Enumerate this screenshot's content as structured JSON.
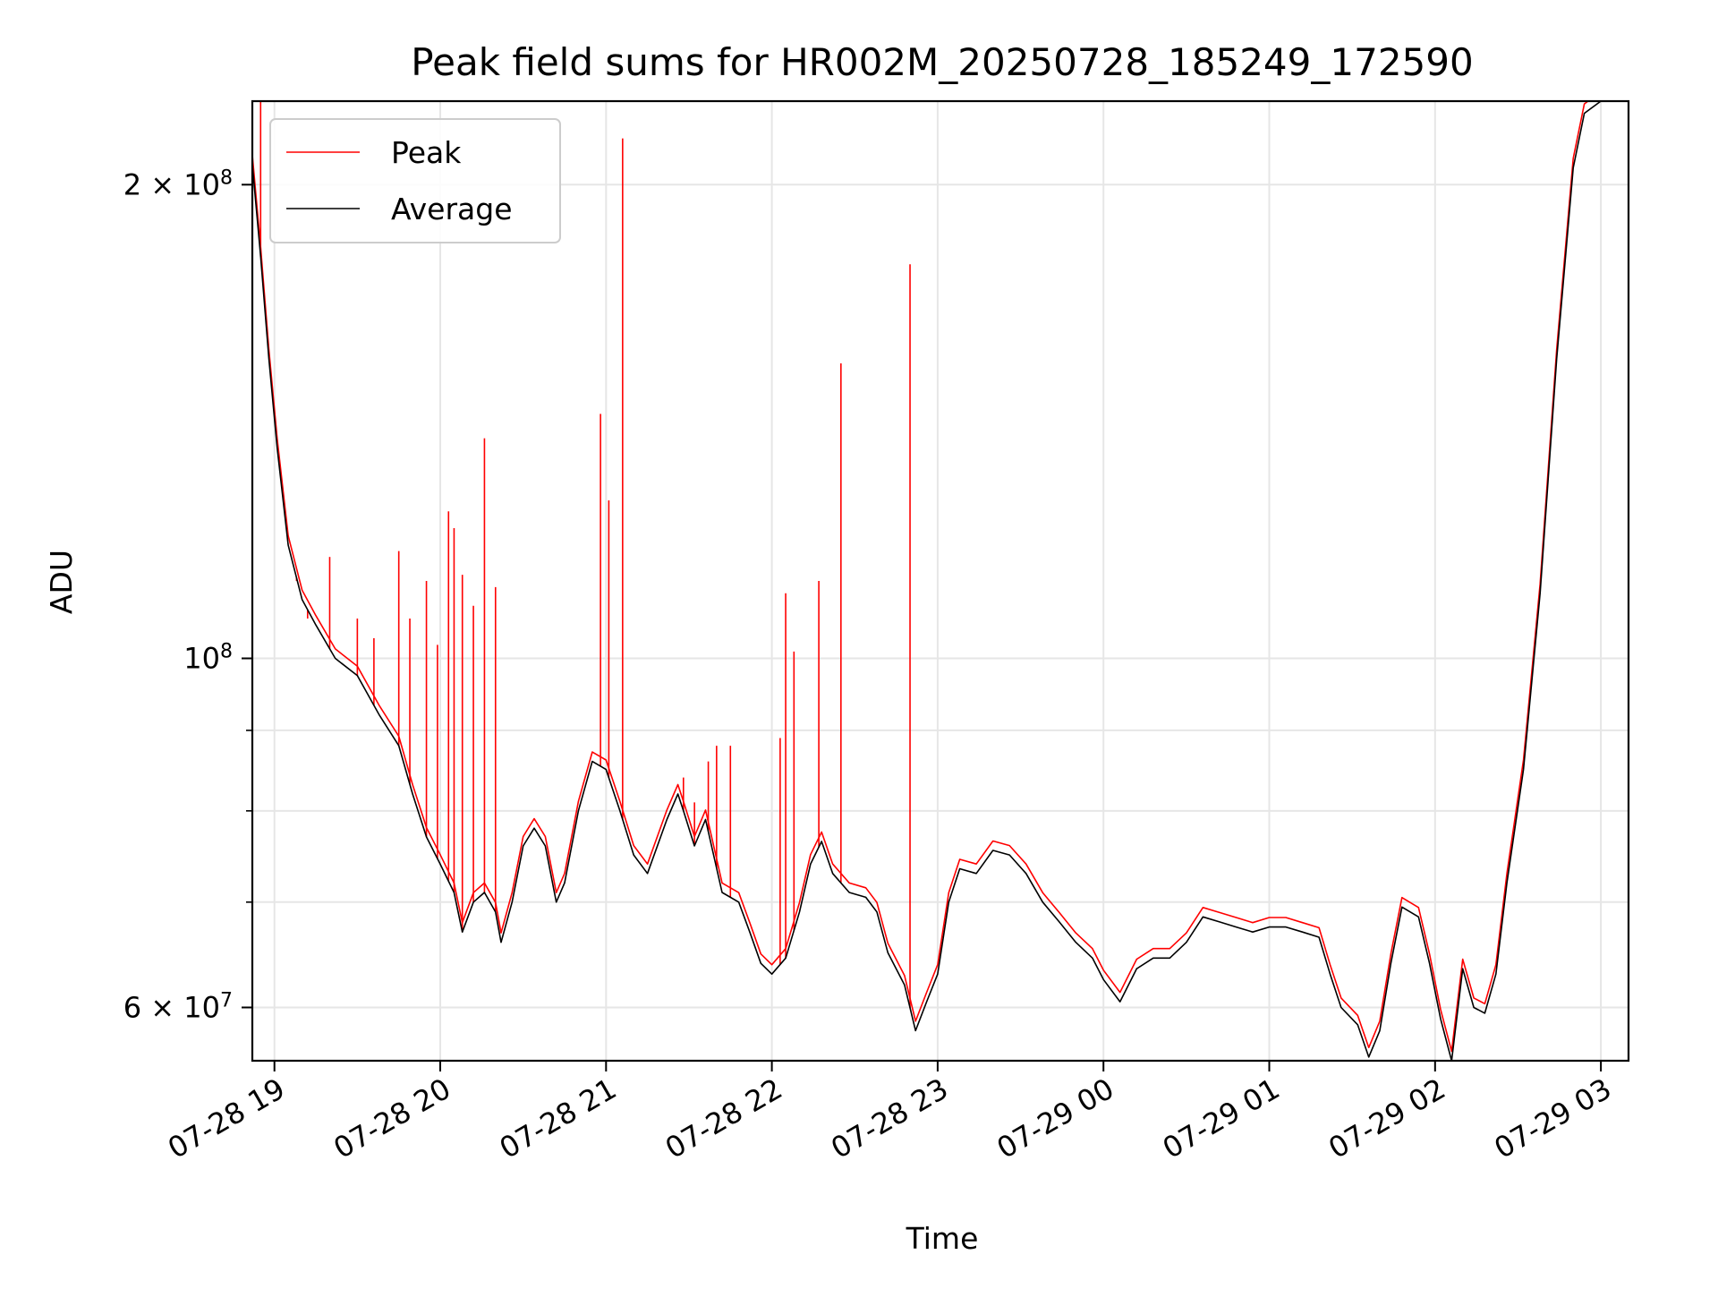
{
  "chart_data": {
    "type": "line",
    "title": "Peak field sums for HR002M_20250728_185249_172590",
    "xlabel": "Time",
    "ylabel": "ADU",
    "yscale": "log",
    "xlim": [
      "2025-07-28 18:52",
      "2025-07-29 03:10"
    ],
    "ylim": [
      55500000,
      226000000
    ],
    "grid": true,
    "legend_position": "top-left",
    "x_ticks": [
      "07-28 19",
      "07-28 20",
      "07-28 21",
      "07-28 22",
      "07-28 23",
      "07-29 00",
      "07-29 01",
      "07-29 02",
      "07-29 03"
    ],
    "y_tick_labels": [
      "2 × 10^8",
      "10^8",
      "6 × 10^7"
    ],
    "y_major_ticks": [
      200000000,
      100000000,
      60000000
    ],
    "y_minor_ticks": [
      90000000,
      80000000,
      70000000
    ],
    "series": [
      {
        "name": "Peak",
        "color": "#ff0000",
        "baseline_offset": 0.006,
        "spikes": [
          [
            "2025-07-28 18:55",
            226000000
          ],
          [
            "2025-07-28 19:08",
            112000000
          ],
          [
            "2025-07-28 19:12",
            106000000
          ],
          [
            "2025-07-28 19:20",
            116000000
          ],
          [
            "2025-07-28 19:30",
            106000000
          ],
          [
            "2025-07-28 19:36",
            103000000
          ],
          [
            "2025-07-28 19:45",
            117000000
          ],
          [
            "2025-07-28 19:49",
            106000000
          ],
          [
            "2025-07-28 19:55",
            112000000
          ],
          [
            "2025-07-28 19:59",
            102000000
          ],
          [
            "2025-07-28 20:03",
            124000000
          ],
          [
            "2025-07-28 20:05",
            121000000
          ],
          [
            "2025-07-28 20:08",
            113000000
          ],
          [
            "2025-07-28 20:12",
            108000000
          ],
          [
            "2025-07-28 20:16",
            138000000
          ],
          [
            "2025-07-28 20:20",
            111000000
          ],
          [
            "2025-07-28 20:58",
            143000000
          ],
          [
            "2025-07-28 21:01",
            126000000
          ],
          [
            "2025-07-28 21:06",
            214000000
          ],
          [
            "2025-07-28 21:28",
            84000000
          ],
          [
            "2025-07-28 21:32",
            81000000
          ],
          [
            "2025-07-28 21:37",
            86000000
          ],
          [
            "2025-07-28 21:40",
            88000000
          ],
          [
            "2025-07-28 21:45",
            88000000
          ],
          [
            "2025-07-28 22:03",
            89000000
          ],
          [
            "2025-07-28 22:05",
            110000000
          ],
          [
            "2025-07-28 22:08",
            101000000
          ],
          [
            "2025-07-28 22:17",
            112000000
          ],
          [
            "2025-07-28 22:25",
            154000000
          ],
          [
            "2025-07-28 22:38",
            69000000
          ],
          [
            "2025-07-28 22:50",
            178000000
          ]
        ]
      },
      {
        "name": "Average",
        "color": "#000000",
        "points": [
          [
            "2025-07-28 18:52",
            206000000
          ],
          [
            "2025-07-28 18:55",
            180000000
          ],
          [
            "2025-07-28 18:58",
            155000000
          ],
          [
            "2025-07-28 19:01",
            136000000
          ],
          [
            "2025-07-28 19:05",
            118000000
          ],
          [
            "2025-07-28 19:10",
            109000000
          ],
          [
            "2025-07-28 19:15",
            105000000
          ],
          [
            "2025-07-28 19:22",
            100000000
          ],
          [
            "2025-07-28 19:30",
            97500000
          ],
          [
            "2025-07-28 19:38",
            92000000
          ],
          [
            "2025-07-28 19:45",
            88000000
          ],
          [
            "2025-07-28 19:50",
            82000000
          ],
          [
            "2025-07-28 19:55",
            77000000
          ],
          [
            "2025-07-28 20:00",
            74000000
          ],
          [
            "2025-07-28 20:05",
            71000000
          ],
          [
            "2025-07-28 20:08",
            67000000
          ],
          [
            "2025-07-28 20:12",
            70000000
          ],
          [
            "2025-07-28 20:16",
            71000000
          ],
          [
            "2025-07-28 20:20",
            69000000
          ],
          [
            "2025-07-28 20:22",
            66000000
          ],
          [
            "2025-07-28 20:26",
            70000000
          ],
          [
            "2025-07-28 20:30",
            76000000
          ],
          [
            "2025-07-28 20:34",
            78000000
          ],
          [
            "2025-07-28 20:38",
            76000000
          ],
          [
            "2025-07-28 20:42",
            70000000
          ],
          [
            "2025-07-28 20:45",
            72000000
          ],
          [
            "2025-07-28 20:50",
            80000000
          ],
          [
            "2025-07-28 20:55",
            86000000
          ],
          [
            "2025-07-28 21:00",
            85000000
          ],
          [
            "2025-07-28 21:05",
            80000000
          ],
          [
            "2025-07-28 21:10",
            75000000
          ],
          [
            "2025-07-28 21:15",
            73000000
          ],
          [
            "2025-07-28 21:22",
            79000000
          ],
          [
            "2025-07-28 21:26",
            82000000
          ],
          [
            "2025-07-28 21:28",
            80000000
          ],
          [
            "2025-07-28 21:32",
            76000000
          ],
          [
            "2025-07-28 21:36",
            79000000
          ],
          [
            "2025-07-28 21:42",
            71000000
          ],
          [
            "2025-07-28 21:48",
            70000000
          ],
          [
            "2025-07-28 21:52",
            67000000
          ],
          [
            "2025-07-28 21:56",
            64000000
          ],
          [
            "2025-07-28 22:00",
            63000000
          ],
          [
            "2025-07-28 22:05",
            64500000
          ],
          [
            "2025-07-28 22:10",
            69000000
          ],
          [
            "2025-07-28 22:14",
            74000000
          ],
          [
            "2025-07-28 22:18",
            76500000
          ],
          [
            "2025-07-28 22:22",
            73000000
          ],
          [
            "2025-07-28 22:28",
            71000000
          ],
          [
            "2025-07-28 22:34",
            70500000
          ],
          [
            "2025-07-28 22:38",
            69000000
          ],
          [
            "2025-07-28 22:42",
            65000000
          ],
          [
            "2025-07-28 22:48",
            62000000
          ],
          [
            "2025-07-28 22:52",
            58000000
          ],
          [
            "2025-07-28 22:56",
            60500000
          ],
          [
            "2025-07-28 23:00",
            63000000
          ],
          [
            "2025-07-28 23:04",
            70000000
          ],
          [
            "2025-07-28 23:08",
            73500000
          ],
          [
            "2025-07-28 23:14",
            73000000
          ],
          [
            "2025-07-28 23:20",
            75500000
          ],
          [
            "2025-07-28 23:26",
            75000000
          ],
          [
            "2025-07-28 23:32",
            73000000
          ],
          [
            "2025-07-28 23:38",
            70000000
          ],
          [
            "2025-07-28 23:44",
            68000000
          ],
          [
            "2025-07-28 23:50",
            66000000
          ],
          [
            "2025-07-28 23:56",
            64500000
          ],
          [
            "2025-07-29 00:00",
            62500000
          ],
          [
            "2025-07-29 00:06",
            60500000
          ],
          [
            "2025-07-29 00:12",
            63500000
          ],
          [
            "2025-07-29 00:18",
            64500000
          ],
          [
            "2025-07-29 00:24",
            64500000
          ],
          [
            "2025-07-29 00:30",
            66000000
          ],
          [
            "2025-07-29 00:36",
            68500000
          ],
          [
            "2025-07-29 00:42",
            68000000
          ],
          [
            "2025-07-29 00:48",
            67500000
          ],
          [
            "2025-07-29 00:54",
            67000000
          ],
          [
            "2025-07-29 01:00",
            67500000
          ],
          [
            "2025-07-29 01:06",
            67500000
          ],
          [
            "2025-07-29 01:12",
            67000000
          ],
          [
            "2025-07-29 01:18",
            66500000
          ],
          [
            "2025-07-29 01:22",
            63000000
          ],
          [
            "2025-07-29 01:26",
            60000000
          ],
          [
            "2025-07-29 01:32",
            58500000
          ],
          [
            "2025-07-29 01:36",
            55800000
          ],
          [
            "2025-07-29 01:40",
            58000000
          ],
          [
            "2025-07-29 01:44",
            64000000
          ],
          [
            "2025-07-29 01:48",
            69500000
          ],
          [
            "2025-07-29 01:54",
            68500000
          ],
          [
            "2025-07-29 01:58",
            64000000
          ],
          [
            "2025-07-29 02:02",
            59000000
          ],
          [
            "2025-07-29 02:06",
            55500000
          ],
          [
            "2025-07-29 02:10",
            63500000
          ],
          [
            "2025-07-29 02:14",
            60000000
          ],
          [
            "2025-07-29 02:18",
            59500000
          ],
          [
            "2025-07-29 02:22",
            63000000
          ],
          [
            "2025-07-29 02:26",
            72000000
          ],
          [
            "2025-07-29 02:32",
            85000000
          ],
          [
            "2025-07-29 02:38",
            110000000
          ],
          [
            "2025-07-29 02:44",
            155000000
          ],
          [
            "2025-07-29 02:50",
            205000000
          ],
          [
            "2025-07-29 02:54",
            222000000
          ],
          [
            "2025-07-29 03:00",
            226000000
          ]
        ]
      }
    ]
  }
}
